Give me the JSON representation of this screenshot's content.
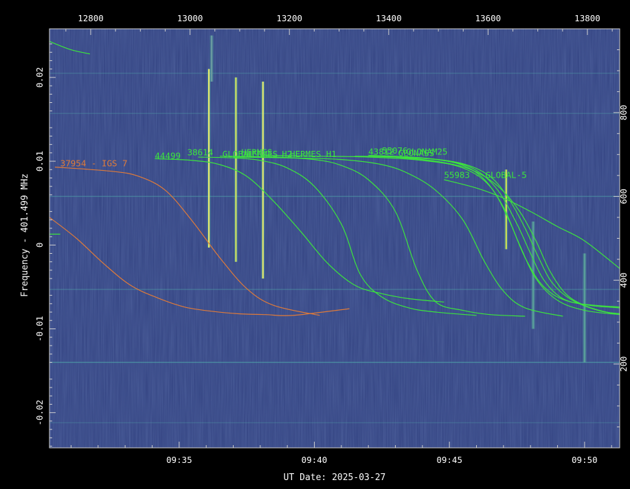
{
  "chart_data": {
    "type": "spectrogram",
    "xlabel": "UT Date: 2025-03-27",
    "ylabel": "Frequency - 401.499 MHz",
    "x_bottom": {
      "unit": "minutes past 09:00 UT",
      "range": [
        30.2,
        51.3
      ],
      "ticks": [
        35,
        40,
        45,
        50
      ],
      "tick_labels": [
        "09:35",
        "09:40",
        "09:45",
        "09:50"
      ]
    },
    "x_top": {
      "unit": "seconds",
      "range": [
        12717,
        13865
      ],
      "ticks": [
        12800,
        13000,
        13200,
        13400,
        13600,
        13800
      ],
      "tick_labels": [
        "12800",
        "13000",
        "13200",
        "13400",
        "13600",
        "13800"
      ]
    },
    "y_left": {
      "unit": "MHz offset",
      "range": [
        -0.0242,
        0.0258
      ],
      "ticks": [
        -0.02,
        -0.01,
        0,
        0.01,
        0.02
      ],
      "tick_labels": [
        "-0.02",
        "-0.01",
        "0",
        "0.01",
        "0.02"
      ]
    },
    "y_right": {
      "unit": "channel",
      "range": [
        0,
        1000
      ],
      "ticks": [
        200,
        400,
        600,
        800
      ],
      "tick_labels": [
        "200",
        "400",
        "600",
        "800"
      ]
    },
    "colors": {
      "background": "#000000",
      "field": "#30407f",
      "axis": "#d0d0d0",
      "text": "#ffffff",
      "track_green": "#3ce63c",
      "track_orange": "#e07b39",
      "bright_signal": "#e8ee4c"
    },
    "series": [
      {
        "name": "37954 - IGS 7",
        "color": "orange",
        "x": [
          30.4,
          32.5,
          33.5,
          34.5,
          35.5,
          36.5,
          37.5,
          38.5,
          40.2
        ],
        "y": [
          0.0093,
          0.0088,
          0.0082,
          0.0065,
          0.0028,
          -0.0015,
          -0.0052,
          -0.0072,
          -0.0084
        ]
      },
      {
        "name": "",
        "color": "orange",
        "x": [
          30.2,
          31.2,
          32.2,
          33.2,
          34.2,
          35.2,
          36.2,
          37.2,
          38.2,
          39.2,
          41.3
        ],
        "y": [
          0.0033,
          0.0008,
          -0.0022,
          -0.0048,
          -0.0063,
          -0.0074,
          -0.0079,
          -0.0082,
          -0.0083,
          -0.0084,
          -0.0076
        ]
      },
      {
        "name": "",
        "color": "green",
        "x": [
          30.2,
          31.0,
          31.7
        ],
        "y": [
          0.0243,
          0.0233,
          0.0228
        ]
      },
      {
        "name": "",
        "color": "green",
        "x": [
          30.2,
          30.6
        ],
        "y": [
          0.0013,
          0.0013
        ]
      },
      {
        "name": "44499",
        "color": "green",
        "x": [
          34.1,
          35.5,
          36.5,
          37.5,
          38.5,
          39.5,
          40.5,
          41.5,
          42.5,
          43.5,
          44.8
        ],
        "y": [
          0.0103,
          0.0101,
          0.0096,
          0.0082,
          0.0052,
          0.0016,
          -0.0022,
          -0.0048,
          -0.0058,
          -0.0064,
          -0.0068
        ]
      },
      {
        "name": "38...",
        "color": "green",
        "x": [
          35.7,
          37.0,
          38.0,
          39.0,
          40.0,
          41.0,
          41.7,
          42.5,
          43.5,
          44.5,
          46.0
        ],
        "y": [
          0.0105,
          0.0104,
          0.0101,
          0.0092,
          0.007,
          0.0025,
          -0.0035,
          -0.0062,
          -0.0075,
          -0.008,
          -0.0084
        ]
      },
      {
        "name": "GLOBAL...",
        "color": "green",
        "x": [
          36.5,
          38.5,
          40.0,
          41.0,
          42.0,
          43.0,
          43.8,
          44.5,
          45.5,
          46.5,
          47.8
        ],
        "y": [
          0.0106,
          0.0105,
          0.0102,
          0.0095,
          0.0078,
          0.004,
          -0.003,
          -0.0068,
          -0.0078,
          -0.0083,
          -0.0085
        ]
      },
      {
        "name": "HERMES H2",
        "color": "green",
        "x": [
          37.0,
          39.0,
          41.0,
          42.5,
          43.5,
          44.5,
          45.5,
          46.3,
          47.0,
          47.8,
          49.2
        ],
        "y": [
          0.0105,
          0.0104,
          0.0102,
          0.0096,
          0.0085,
          0.0065,
          0.003,
          -0.002,
          -0.0055,
          -0.0075,
          -0.0085
        ]
      },
      {
        "name": "HERMES H1",
        "color": "green",
        "x": [
          38.0,
          40.0,
          42.0,
          44.0,
          45.5,
          46.5,
          47.2,
          47.8,
          48.5,
          49.5,
          51.3
        ],
        "y": [
          0.0107,
          0.0106,
          0.0105,
          0.0101,
          0.0092,
          0.007,
          0.003,
          -0.0015,
          -0.005,
          -0.0068,
          -0.0074
        ]
      },
      {
        "name": "43812",
        "color": "green",
        "x": [
          41.5,
          43.0,
          44.5,
          45.5,
          46.3,
          47.0,
          47.6,
          48.2,
          49.0,
          50.0,
          51.3
        ],
        "y": [
          0.0106,
          0.0105,
          0.0102,
          0.0095,
          0.0078,
          0.0045,
          0.0,
          -0.004,
          -0.0066,
          -0.0078,
          -0.0083
        ]
      },
      {
        "name": "55076",
        "color": "green",
        "x": [
          42.0,
          43.5,
          45.0,
          46.0,
          46.8,
          47.5,
          48.0,
          48.5,
          49.2,
          50.2,
          51.3
        ],
        "y": [
          0.0107,
          0.0105,
          0.01,
          0.0089,
          0.0065,
          0.0025,
          -0.001,
          -0.0042,
          -0.0064,
          -0.0072,
          -0.0075
        ]
      },
      {
        "name": "GLONASS...",
        "color": "green",
        "x": [
          42.5,
          44.0,
          45.5,
          46.5,
          47.2,
          47.8,
          48.3,
          48.8,
          49.5,
          50.5,
          51.3
        ],
        "y": [
          0.0106,
          0.0104,
          0.0097,
          0.0082,
          0.0055,
          0.002,
          -0.0015,
          -0.0045,
          -0.0065,
          -0.0078,
          -0.0082
        ]
      },
      {
        "name": "GLONAM25",
        "color": "green",
        "x": [
          43.0,
          44.5,
          45.8,
          46.8,
          47.6,
          48.2,
          48.7,
          49.3,
          50.0,
          50.8,
          51.3
        ],
        "y": [
          0.0105,
          0.01,
          0.009,
          0.007,
          0.004,
          0.0005,
          -0.003,
          -0.0058,
          -0.0072,
          -0.008,
          -0.0082
        ]
      },
      {
        "name": "55983 - GLOBAL-5",
        "color": "green",
        "x": [
          44.8,
          46.0,
          47.0,
          48.0,
          49.0,
          50.0,
          51.3
        ],
        "y": [
          0.0078,
          0.0068,
          0.0056,
          0.004,
          0.0022,
          0.0005,
          -0.0028
        ]
      }
    ],
    "track_labels": [
      {
        "text": "37954 - IGS 7",
        "color": "orange",
        "x": 30.6,
        "y": 0.0094
      },
      {
        "text": "44499",
        "color": "green",
        "x": 34.1,
        "y": 0.0103
      },
      {
        "text": "38614",
        "color": "green",
        "x": 35.3,
        "y": 0.0107
      },
      {
        "text": "GLOBAL",
        "color": "green",
        "x": 36.6,
        "y": 0.0105
      },
      {
        "text": "HERMES",
        "color": "green",
        "x": 37.3,
        "y": 0.0107
      },
      {
        "text": "HERMES",
        "color": "green",
        "x": 37.5,
        "y": 0.0105
      },
      {
        "text": "H2",
        "color": "green",
        "x": 38.8,
        "y": 0.0105
      },
      {
        "text": "HERMES H1",
        "color": "green",
        "x": 39.1,
        "y": 0.0105
      },
      {
        "text": "43812",
        "color": "green",
        "x": 42.0,
        "y": 0.0108
      },
      {
        "text": "55076",
        "color": "green",
        "x": 42.5,
        "y": 0.0109
      },
      {
        "text": "GLONASS",
        "color": "green",
        "x": 43.1,
        "y": 0.0106
      },
      {
        "text": "GLONAM25",
        "color": "green",
        "x": 43.4,
        "y": 0.0108
      },
      {
        "text": "55983 - GLOBAL-5",
        "color": "green",
        "x": 44.8,
        "y": 0.008
      }
    ],
    "bursts": [
      {
        "x": 36.1,
        "y_min": -0.0003,
        "y_max": 0.021,
        "color": "#f2f56a"
      },
      {
        "x": 37.1,
        "y_min": -0.002,
        "y_max": 0.02,
        "color": "#dfee5a"
      },
      {
        "x": 38.1,
        "y_min": -0.004,
        "y_max": 0.0195,
        "color": "#f2f56a"
      },
      {
        "x": 47.1,
        "y_min": -0.0005,
        "y_max": 0.009,
        "color": "#d9ea4e"
      },
      {
        "x": 48.1,
        "y_min": -0.01,
        "y_max": 0.0028,
        "color": "#5aa09a"
      },
      {
        "x": 50.0,
        "y_min": -0.014,
        "y_max": -0.001,
        "color": "#5aa09a"
      },
      {
        "x": 36.2,
        "y_min": 0.0195,
        "y_max": 0.025,
        "color": "#6a9aa0"
      }
    ],
    "hlines": [
      {
        "y": 0.0205,
        "opacity": 0.35
      },
      {
        "y": 0.0157,
        "opacity": 0.35
      },
      {
        "y": 0.0058,
        "opacity": 0.55
      },
      {
        "y": -0.0053,
        "opacity": 0.45
      },
      {
        "y": -0.014,
        "opacity": 0.7
      },
      {
        "y": -0.0212,
        "opacity": 0.3
      }
    ],
    "grid": false,
    "legend": "none"
  }
}
